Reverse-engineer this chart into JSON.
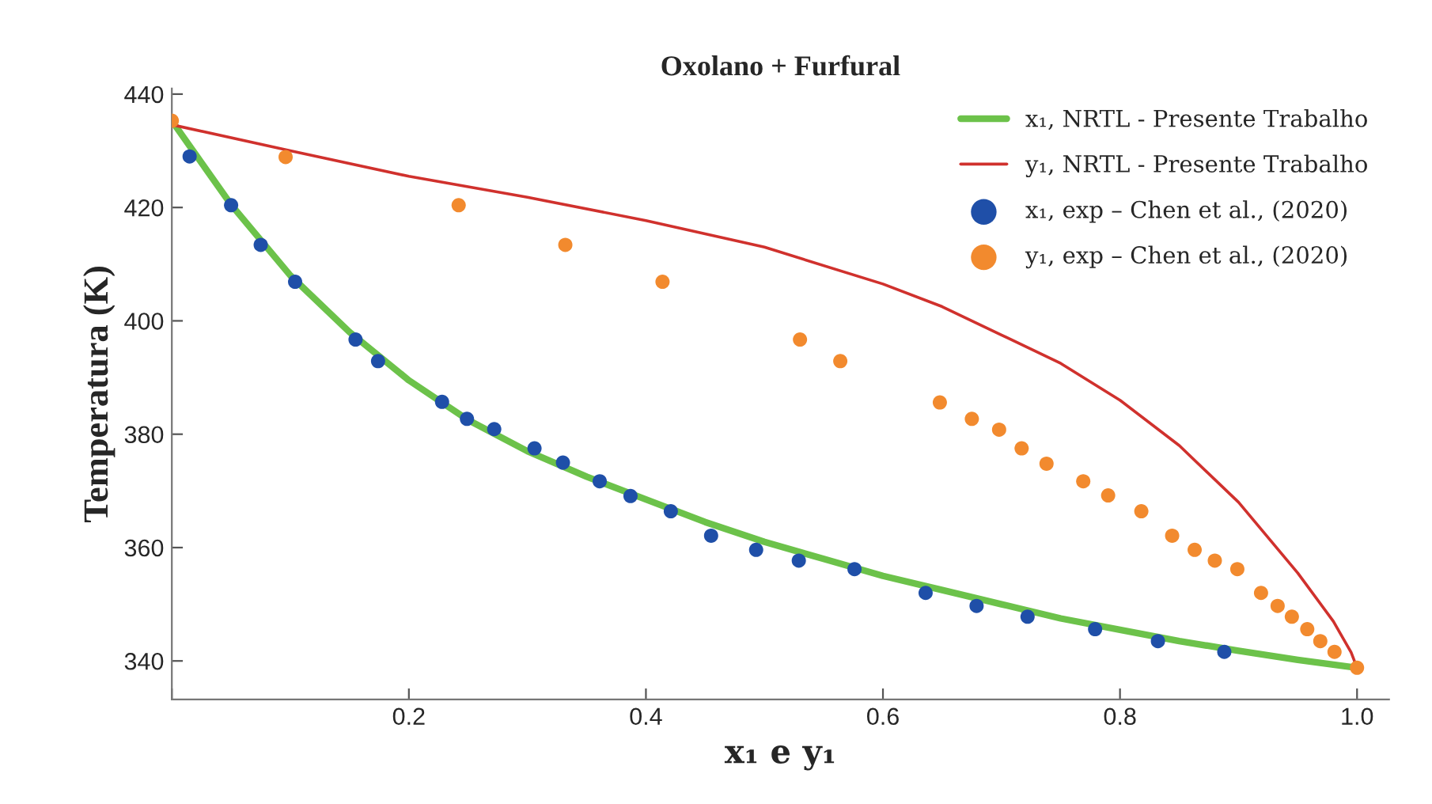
{
  "chart_data": {
    "type": "line",
    "title": "Oxolano + Furfural",
    "xlabel": "x₁ e y₁",
    "ylabel": "Temperatura (K)",
    "xlim": [
      0,
      1.027
    ],
    "ylim": [
      333.2,
      441
    ],
    "xticks": [
      {
        "value": 0,
        "label": null
      },
      0.2,
      0.4,
      0.6,
      0.8,
      {
        "value": 1,
        "label": "1.0"
      }
    ],
    "yticks": [
      340,
      360,
      380,
      400,
      420,
      440
    ],
    "grid": false,
    "legend": "top right",
    "series": [
      {
        "name": "x₁, NRTL - Presente Trabalho",
        "color": "#6cc24a",
        "line_style": "solid",
        "marker": "none",
        "x": [
          0,
          0.05,
          0.1,
          0.15,
          0.2,
          0.25,
          0.3,
          0.35,
          0.4,
          0.45,
          0.5,
          0.55,
          0.6,
          0.65,
          0.7,
          0.75,
          0.8,
          0.85,
          0.9,
          0.95,
          1.0
        ],
        "values": [
          435.3,
          420.5,
          408,
          398,
          389.5,
          382.5,
          377,
          372.5,
          368.5,
          364.5,
          361,
          358,
          355,
          352.5,
          350,
          347.5,
          345.5,
          343.5,
          341.8,
          340.2,
          338.8
        ]
      },
      {
        "name": "y₁, NRTL - Presente Trabalho",
        "color": "#d0312d",
        "line_style": "solid",
        "marker": "none",
        "x": [
          0,
          0.1,
          0.2,
          0.3,
          0.4,
          0.5,
          0.6,
          0.65,
          0.7,
          0.75,
          0.8,
          0.85,
          0.9,
          0.95,
          0.98,
          0.995,
          1.0
        ],
        "values": [
          434.6,
          430,
          425.5,
          421.8,
          417.7,
          413,
          406.5,
          402.5,
          397.5,
          392.5,
          386,
          378,
          368,
          355.5,
          347,
          341.5,
          338.8
        ]
      },
      {
        "name": "x₁, exp – Chen et al., (2020)",
        "type": "scatter",
        "color": "#1f4fa8",
        "marker": "circle",
        "x": [
          0.015,
          0.05,
          0.075,
          0.104,
          0.155,
          0.174,
          0.228,
          0.249,
          0.272,
          0.306,
          0.33,
          0.361,
          0.387,
          0.421,
          0.455,
          0.493,
          0.529,
          0.576,
          0.636,
          0.679,
          0.722,
          0.779,
          0.832,
          0.888
        ],
        "values": [
          429.0,
          420.4,
          413.4,
          406.9,
          396.7,
          392.9,
          385.7,
          382.7,
          380.9,
          377.5,
          375.0,
          371.7,
          369.1,
          366.4,
          362.1,
          359.6,
          357.7,
          356.2,
          352.0,
          349.7,
          347.8,
          345.6,
          343.5,
          341.6
        ]
      },
      {
        "name": "y₁, exp – Chen et al., (2020)",
        "type": "scatter",
        "color": "#f28a2e",
        "marker": "circle",
        "x": [
          0,
          0.096,
          0.242,
          0.332,
          0.414,
          0.53,
          0.564,
          0.648,
          0.675,
          0.698,
          0.717,
          0.738,
          0.769,
          0.79,
          0.818,
          0.844,
          0.863,
          0.88,
          0.899,
          0.919,
          0.933,
          0.945,
          0.958,
          0.969,
          0.981,
          1.0
        ],
        "values": [
          435.3,
          428.9,
          420.4,
          413.4,
          406.9,
          396.7,
          392.9,
          385.6,
          382.7,
          380.8,
          377.5,
          374.8,
          371.7,
          369.2,
          366.4,
          362.1,
          359.6,
          357.7,
          356.2,
          352.0,
          349.7,
          347.8,
          345.6,
          343.5,
          341.6,
          338.8
        ]
      }
    ]
  }
}
